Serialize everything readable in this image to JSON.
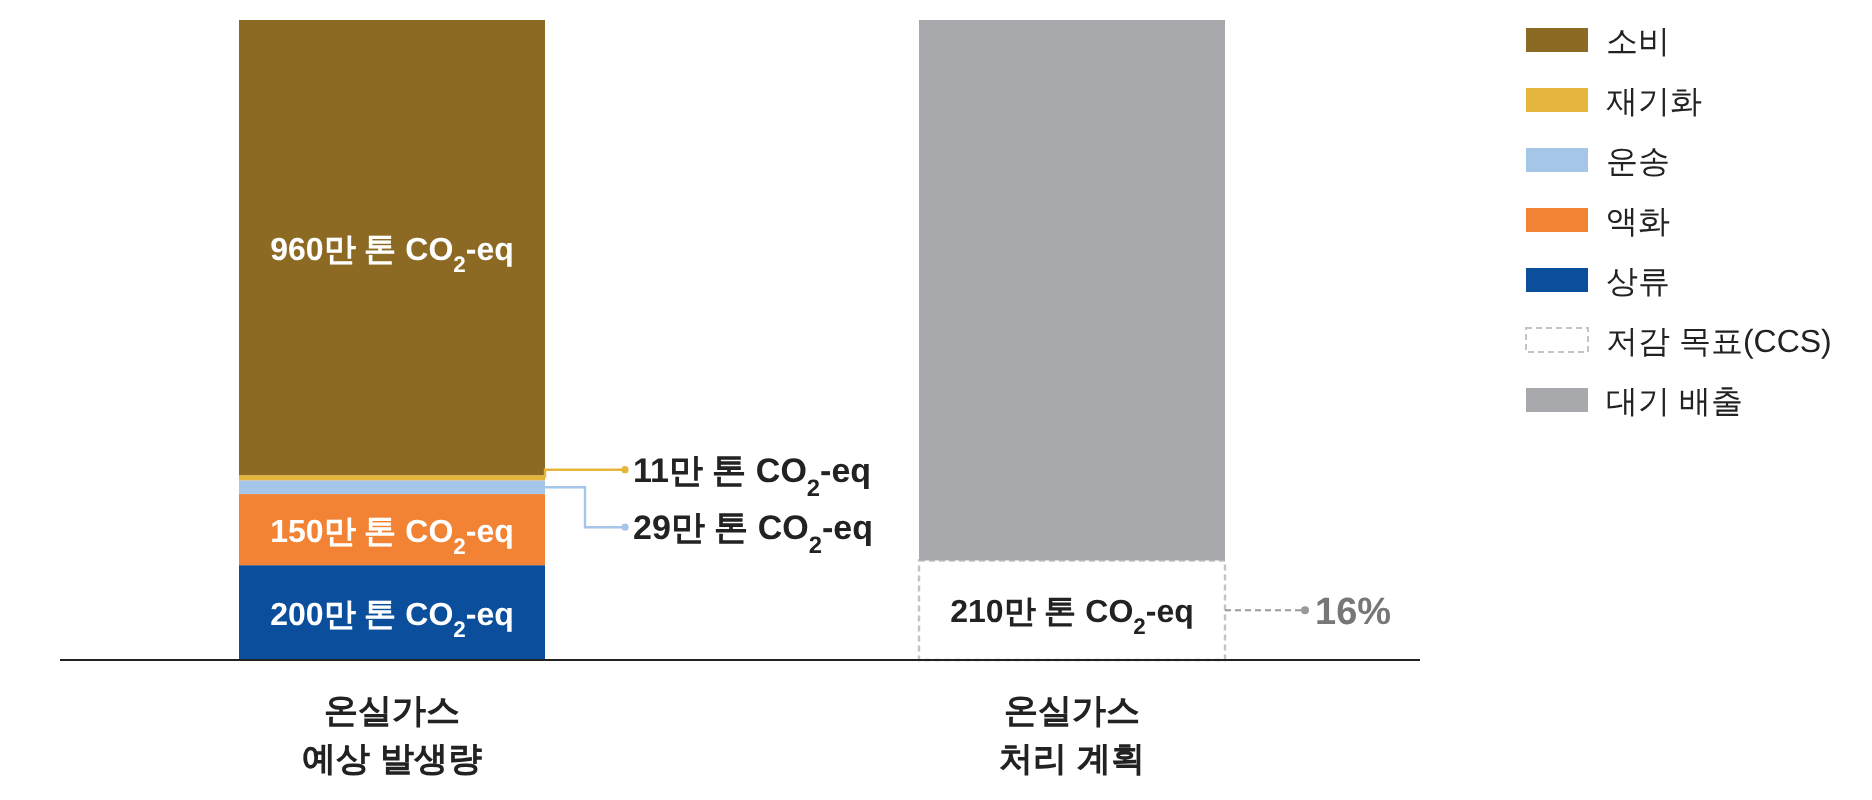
{
  "chart_data": {
    "type": "bar",
    "stacked": true,
    "legend": "top right",
    "categories": [
      "온실가스\n예상 발생량",
      "온실가스\n처리 계획"
    ],
    "series": [
      {
        "name": "상류",
        "color": "#0b4f9c",
        "values": [
          200,
          null
        ],
        "value_labels": [
          "200만 톤 CO$_{2}$-eq",
          null
        ]
      },
      {
        "name": "액화",
        "color": "#f28334",
        "values": [
          150,
          null
        ],
        "value_labels": [
          "150만 톤 CO$_{2}$-eq",
          null
        ]
      },
      {
        "name": "운송",
        "color": "#a5c6e9",
        "values": [
          29,
          null
        ],
        "value_labels": [
          "29만 톤 CO$_{2}$-eq",
          null
        ]
      },
      {
        "name": "재기화",
        "color": "#e6b53d",
        "values": [
          11,
          null
        ],
        "value_labels": [
          "11만 톤 CO$_{2}$-eq",
          null
        ]
      },
      {
        "name": "소비",
        "color": "#8c6a24",
        "values": [
          960,
          null
        ],
        "value_labels": [
          "960만 톤 CO$_{2}$-eq",
          null
        ]
      },
      {
        "name": "저감 목표(CCS)",
        "color": "#c4c4c4",
        "line_style": "dashed",
        "values": [
          null,
          210
        ],
        "value_labels": [
          null,
          "210만 톤 CO$_{2}$-eq"
        ]
      },
      {
        "name": "대기 배출",
        "color": "#a8a9ac",
        "values": [
          null,
          1140
        ]
      }
    ],
    "annotations": [
      "16%"
    ]
  }
}
